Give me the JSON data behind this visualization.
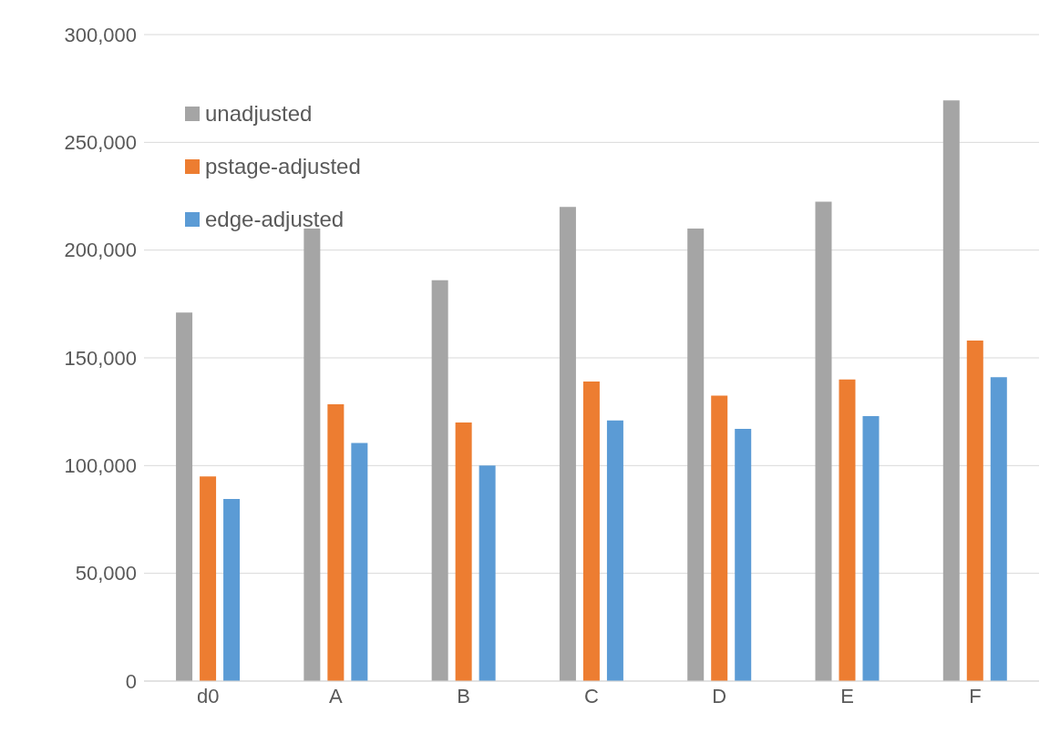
{
  "chart_data": {
    "type": "bar",
    "categories": [
      "d0",
      "A",
      "B",
      "C",
      "D",
      "E",
      "F"
    ],
    "series": [
      {
        "name": "unadjusted",
        "color": "#a5a5a5",
        "values": [
          171000,
          210000,
          186000,
          220000,
          210000,
          222500,
          269500
        ]
      },
      {
        "name": "pstage-adjusted",
        "color": "#ed7d31",
        "values": [
          95000,
          128500,
          120000,
          139000,
          132500,
          140000,
          158000
        ]
      },
      {
        "name": "edge-adjusted",
        "color": "#5b9bd5",
        "values": [
          84500,
          110500,
          100000,
          121000,
          117000,
          123000,
          141000
        ]
      }
    ],
    "ylim": [
      0,
      300000
    ],
    "yticks": [
      0,
      {
        "value": 50000,
        "label": "50,000"
      },
      {
        "value": 100000,
        "label": "100,000"
      },
      {
        "value": 150000,
        "label": "150,000"
      },
      {
        "value": 200000,
        "label": "200,000"
      },
      {
        "value": 250000,
        "label": "250,000"
      },
      {
        "value": 300000,
        "label": "300,000"
      }
    ],
    "grid": "y",
    "legend": "top left"
  }
}
